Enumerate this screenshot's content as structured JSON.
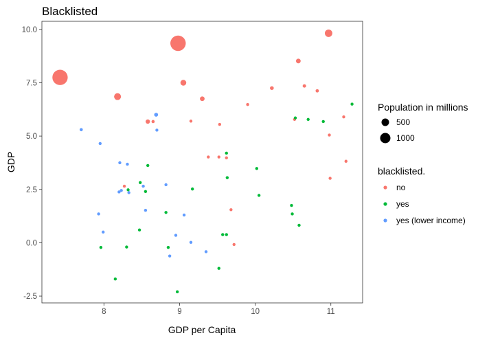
{
  "chart_data": {
    "type": "scatter",
    "title": "Blacklisted",
    "xlabel": "GDP per Capita",
    "ylabel": "GDP",
    "xlim": [
      7.18,
      11.42
    ],
    "ylim": [
      -2.82,
      10.38
    ],
    "x_ticks": [
      8,
      9,
      10,
      11
    ],
    "x_tick_labels": [
      "8",
      "9",
      "10",
      "11"
    ],
    "y_ticks": [
      -2.5,
      0,
      2.5,
      5,
      7.5,
      10
    ],
    "y_tick_labels": [
      "-2.5",
      "0.0",
      "2.5",
      "5.0",
      "7.5",
      "10.0"
    ],
    "grid": false,
    "legend_position": "right",
    "size_legend": {
      "title": "Population in millions",
      "entries": [
        {
          "label": "500",
          "value": 500
        },
        {
          "label": "1000",
          "value": 1000
        }
      ]
    },
    "color_legend": {
      "title": "blacklisted.",
      "entries": [
        {
          "label": "no",
          "color": "#F8766D"
        },
        {
          "label": "yes",
          "color": "#00BA38"
        },
        {
          "label": "yes (lower income)",
          "color": "#619CFF"
        }
      ]
    },
    "series": [
      {
        "name": "no",
        "color": "#F8766D",
        "points": [
          {
            "x": 7.42,
            "y": 7.75,
            "pop": 1380
          },
          {
            "x": 8.18,
            "y": 6.85,
            "pop": 280
          },
          {
            "x": 8.98,
            "y": 9.35,
            "pop": 1400
          },
          {
            "x": 9.05,
            "y": 7.5,
            "pop": 200
          },
          {
            "x": 10.97,
            "y": 9.82,
            "pop": 330
          },
          {
            "x": 10.57,
            "y": 8.52,
            "pop": 130
          },
          {
            "x": 9.3,
            "y": 6.75,
            "pop": 130
          },
          {
            "x": 10.22,
            "y": 7.25,
            "pop": 85
          },
          {
            "x": 10.65,
            "y": 7.35,
            "pop": 70
          },
          {
            "x": 10.82,
            "y": 7.12,
            "pop": 65
          },
          {
            "x": 8.58,
            "y": 5.68,
            "pop": 110
          },
          {
            "x": 8.65,
            "y": 5.68,
            "pop": 60
          },
          {
            "x": 9.15,
            "y": 5.7,
            "pop": 50
          },
          {
            "x": 9.53,
            "y": 5.55,
            "pop": 45
          },
          {
            "x": 9.9,
            "y": 6.48,
            "pop": 45
          },
          {
            "x": 10.52,
            "y": 5.78,
            "pop": 35
          },
          {
            "x": 11.17,
            "y": 5.9,
            "pop": 30
          },
          {
            "x": 10.98,
            "y": 5.05,
            "pop": 8
          },
          {
            "x": 9.38,
            "y": 4.02,
            "pop": 25
          },
          {
            "x": 9.52,
            "y": 4.02,
            "pop": 20
          },
          {
            "x": 9.62,
            "y": 3.98,
            "pop": 12
          },
          {
            "x": 11.2,
            "y": 3.82,
            "pop": 8
          },
          {
            "x": 10.99,
            "y": 3.02,
            "pop": 8
          },
          {
            "x": 8.27,
            "y": 2.65,
            "pop": 25
          },
          {
            "x": 9.68,
            "y": 1.55,
            "pop": 10
          },
          {
            "x": 9.72,
            "y": -0.08,
            "pop": 8
          }
        ]
      },
      {
        "name": "yes",
        "color": "#00BA38",
        "points": [
          {
            "x": 11.28,
            "y": 6.5,
            "pop": 40
          },
          {
            "x": 10.53,
            "y": 5.85,
            "pop": 35
          },
          {
            "x": 10.7,
            "y": 5.78,
            "pop": 35
          },
          {
            "x": 10.9,
            "y": 5.68,
            "pop": 30
          },
          {
            "x": 9.62,
            "y": 4.2,
            "pop": 35
          },
          {
            "x": 8.58,
            "y": 3.62,
            "pop": 30
          },
          {
            "x": 10.02,
            "y": 3.48,
            "pop": 15
          },
          {
            "x": 9.63,
            "y": 3.05,
            "pop": 12
          },
          {
            "x": 9.17,
            "y": 2.52,
            "pop": 12
          },
          {
            "x": 8.32,
            "y": 2.48,
            "pop": 12
          },
          {
            "x": 8.48,
            "y": 2.82,
            "pop": 30
          },
          {
            "x": 8.55,
            "y": 2.4,
            "pop": 10
          },
          {
            "x": 10.05,
            "y": 2.22,
            "pop": 10
          },
          {
            "x": 10.48,
            "y": 1.75,
            "pop": 10
          },
          {
            "x": 8.82,
            "y": 1.42,
            "pop": 10
          },
          {
            "x": 10.49,
            "y": 1.35,
            "pop": 10
          },
          {
            "x": 10.58,
            "y": 0.82,
            "pop": 10
          },
          {
            "x": 8.47,
            "y": 0.6,
            "pop": 10
          },
          {
            "x": 9.57,
            "y": 0.38,
            "pop": 10
          },
          {
            "x": 9.62,
            "y": 0.38,
            "pop": 10
          },
          {
            "x": 7.96,
            "y": -0.22,
            "pop": 10
          },
          {
            "x": 8.3,
            "y": -0.2,
            "pop": 10
          },
          {
            "x": 8.85,
            "y": -0.22,
            "pop": 10
          },
          {
            "x": 9.52,
            "y": -1.2,
            "pop": 10
          },
          {
            "x": 8.15,
            "y": -1.7,
            "pop": 10
          },
          {
            "x": 8.97,
            "y": -2.3,
            "pop": 8
          }
        ]
      },
      {
        "name": "yes (lower income)",
        "color": "#619CFF",
        "points": [
          {
            "x": 8.69,
            "y": 6.0,
            "pop": 90
          },
          {
            "x": 8.7,
            "y": 5.28,
            "pop": 35
          },
          {
            "x": 7.7,
            "y": 5.3,
            "pop": 60
          },
          {
            "x": 7.95,
            "y": 4.65,
            "pop": 35
          },
          {
            "x": 8.21,
            "y": 3.75,
            "pop": 30
          },
          {
            "x": 8.31,
            "y": 3.68,
            "pop": 20
          },
          {
            "x": 8.2,
            "y": 2.38,
            "pop": 10
          },
          {
            "x": 8.23,
            "y": 2.45,
            "pop": 8
          },
          {
            "x": 8.33,
            "y": 2.35,
            "pop": 8
          },
          {
            "x": 8.52,
            "y": 2.65,
            "pop": 8
          },
          {
            "x": 8.82,
            "y": 2.72,
            "pop": 8
          },
          {
            "x": 8.55,
            "y": 1.52,
            "pop": 8
          },
          {
            "x": 7.93,
            "y": 1.35,
            "pop": 8
          },
          {
            "x": 9.06,
            "y": 1.3,
            "pop": 8
          },
          {
            "x": 7.99,
            "y": 0.5,
            "pop": 8
          },
          {
            "x": 8.95,
            "y": 0.35,
            "pop": 8
          },
          {
            "x": 9.15,
            "y": 0.02,
            "pop": 8
          },
          {
            "x": 9.35,
            "y": -0.42,
            "pop": 8
          },
          {
            "x": 8.87,
            "y": -0.62,
            "pop": 8
          }
        ]
      }
    ]
  }
}
